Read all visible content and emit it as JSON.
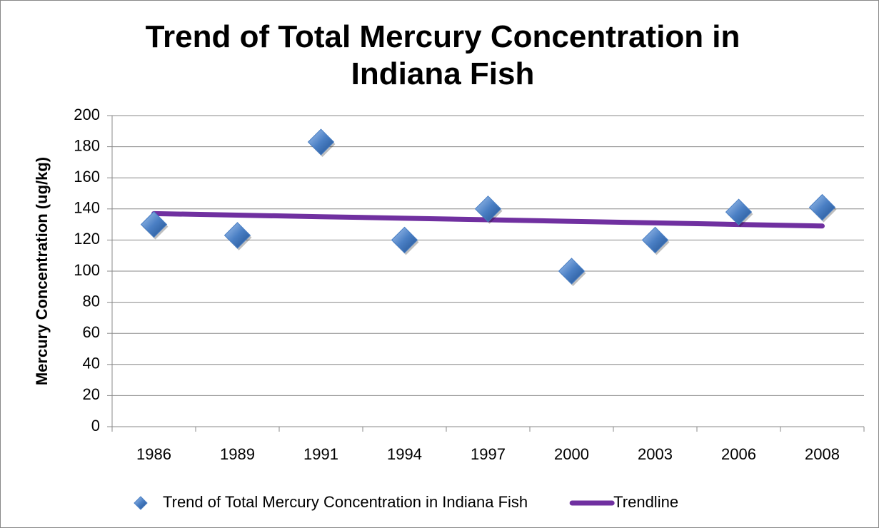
{
  "chart_data": {
    "type": "scatter",
    "title": "Trend of Total Mercury Concentration in Indiana Fish",
    "y_label": "Mercury Concentration (ug/kg)",
    "categories": [
      "1986",
      "1989",
      "1991",
      "1994",
      "1997",
      "2000",
      "2003",
      "2006",
      "2008"
    ],
    "series": [
      {
        "name": "Trend of Total Mercury Concentration in Indiana Fish",
        "color": "#4a7fc4",
        "mark": "diamond",
        "values": [
          130,
          123,
          183,
          120,
          140,
          100,
          120,
          138,
          141
        ]
      },
      {
        "name": "Trendline",
        "color": "#7030a0",
        "mark": "line",
        "values": [
          137,
          136,
          135,
          134,
          133,
          132,
          131,
          130,
          129
        ]
      }
    ],
    "ylim": [
      0,
      200
    ],
    "yticks": [
      0,
      20,
      40,
      60,
      80,
      100,
      120,
      140,
      160,
      180,
      200
    ],
    "grid": true,
    "legend": "bottom"
  }
}
